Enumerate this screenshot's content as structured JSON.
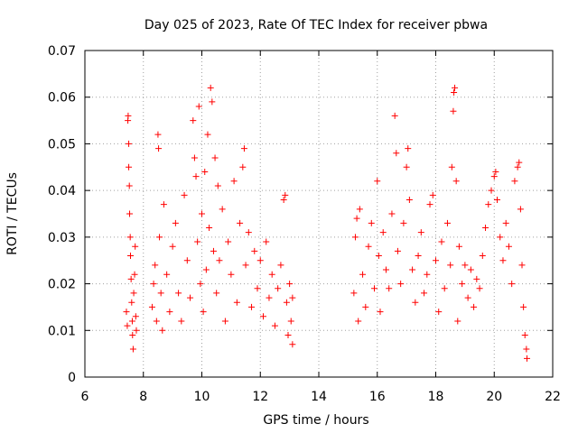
{
  "chart_data": {
    "type": "scatter",
    "title": "Day 025 of 2023, Rate Of TEC Index for receiver pbwa",
    "xlabel": "GPS time / hours",
    "ylabel": "ROTI / TECUs",
    "xlim": [
      6,
      22
    ],
    "ylim": [
      0,
      0.07
    ],
    "xticks": [
      "6",
      "8",
      "10",
      "12",
      "14",
      "16",
      "18",
      "20",
      "22"
    ],
    "yticks": [
      "0",
      "0.01",
      "0.02",
      "0.03",
      "0.04",
      "0.05",
      "0.06",
      "0.07"
    ],
    "grid": true,
    "marker": "+",
    "color": "#ff0000",
    "series": [
      {
        "points": [
          [
            7.42,
            0.014
          ],
          [
            7.45,
            0.011
          ],
          [
            7.47,
            0.055
          ],
          [
            7.48,
            0.056
          ],
          [
            7.5,
            0.05
          ],
          [
            7.5,
            0.045
          ],
          [
            7.52,
            0.041
          ],
          [
            7.53,
            0.035
          ],
          [
            7.55,
            0.03
          ],
          [
            7.56,
            0.026
          ],
          [
            7.58,
            0.021
          ],
          [
            7.6,
            0.016
          ],
          [
            7.62,
            0.012
          ],
          [
            7.63,
            0.009
          ],
          [
            7.65,
            0.006
          ],
          [
            7.67,
            0.018
          ],
          [
            7.7,
            0.022
          ],
          [
            7.72,
            0.028
          ],
          [
            7.74,
            0.013
          ],
          [
            7.76,
            0.01
          ],
          [
            8.3,
            0.015
          ],
          [
            8.35,
            0.02
          ],
          [
            8.4,
            0.024
          ],
          [
            8.45,
            0.012
          ],
          [
            8.5,
            0.052
          ],
          [
            8.52,
            0.049
          ],
          [
            8.55,
            0.03
          ],
          [
            8.6,
            0.018
          ],
          [
            8.65,
            0.01
          ],
          [
            8.7,
            0.037
          ],
          [
            8.8,
            0.022
          ],
          [
            8.9,
            0.014
          ],
          [
            9.0,
            0.028
          ],
          [
            9.1,
            0.033
          ],
          [
            9.2,
            0.018
          ],
          [
            9.3,
            0.012
          ],
          [
            9.4,
            0.039
          ],
          [
            9.5,
            0.025
          ],
          [
            9.6,
            0.017
          ],
          [
            9.7,
            0.055
          ],
          [
            9.75,
            0.047
          ],
          [
            9.8,
            0.043
          ],
          [
            9.85,
            0.029
          ],
          [
            9.9,
            0.058
          ],
          [
            9.95,
            0.02
          ],
          [
            10.0,
            0.035
          ],
          [
            10.05,
            0.014
          ],
          [
            10.1,
            0.044
          ],
          [
            10.15,
            0.023
          ],
          [
            10.2,
            0.052
          ],
          [
            10.25,
            0.032
          ],
          [
            10.3,
            0.062
          ],
          [
            10.35,
            0.059
          ],
          [
            10.4,
            0.027
          ],
          [
            10.45,
            0.047
          ],
          [
            10.5,
            0.018
          ],
          [
            10.55,
            0.041
          ],
          [
            10.6,
            0.025
          ],
          [
            10.7,
            0.036
          ],
          [
            10.8,
            0.012
          ],
          [
            10.9,
            0.029
          ],
          [
            11.0,
            0.022
          ],
          [
            11.1,
            0.042
          ],
          [
            11.2,
            0.016
          ],
          [
            11.3,
            0.033
          ],
          [
            11.4,
            0.045
          ],
          [
            11.45,
            0.049
          ],
          [
            11.5,
            0.024
          ],
          [
            11.6,
            0.031
          ],
          [
            11.7,
            0.015
          ],
          [
            11.8,
            0.027
          ],
          [
            11.9,
            0.019
          ],
          [
            12.0,
            0.025
          ],
          [
            12.1,
            0.013
          ],
          [
            12.2,
            0.029
          ],
          [
            12.3,
            0.017
          ],
          [
            12.4,
            0.022
          ],
          [
            12.5,
            0.011
          ],
          [
            12.6,
            0.019
          ],
          [
            12.7,
            0.024
          ],
          [
            12.8,
            0.038
          ],
          [
            12.85,
            0.039
          ],
          [
            12.9,
            0.016
          ],
          [
            12.95,
            0.009
          ],
          [
            13.0,
            0.02
          ],
          [
            13.05,
            0.012
          ],
          [
            13.1,
            0.007
          ],
          [
            13.1,
            0.017
          ],
          [
            15.2,
            0.018
          ],
          [
            15.25,
            0.03
          ],
          [
            15.3,
            0.034
          ],
          [
            15.35,
            0.012
          ],
          [
            15.4,
            0.036
          ],
          [
            15.5,
            0.022
          ],
          [
            15.6,
            0.015
          ],
          [
            15.7,
            0.028
          ],
          [
            15.8,
            0.033
          ],
          [
            15.9,
            0.019
          ],
          [
            16.0,
            0.042
          ],
          [
            16.05,
            0.026
          ],
          [
            16.1,
            0.014
          ],
          [
            16.2,
            0.031
          ],
          [
            16.3,
            0.023
          ],
          [
            16.4,
            0.019
          ],
          [
            16.5,
            0.035
          ],
          [
            16.6,
            0.056
          ],
          [
            16.65,
            0.048
          ],
          [
            16.7,
            0.027
          ],
          [
            16.8,
            0.02
          ],
          [
            16.9,
            0.033
          ],
          [
            17.0,
            0.045
          ],
          [
            17.05,
            0.049
          ],
          [
            17.1,
            0.038
          ],
          [
            17.2,
            0.023
          ],
          [
            17.3,
            0.016
          ],
          [
            17.4,
            0.026
          ],
          [
            17.5,
            0.031
          ],
          [
            17.6,
            0.018
          ],
          [
            17.7,
            0.022
          ],
          [
            17.8,
            0.037
          ],
          [
            17.9,
            0.039
          ],
          [
            18.0,
            0.025
          ],
          [
            18.1,
            0.014
          ],
          [
            18.2,
            0.029
          ],
          [
            18.3,
            0.019
          ],
          [
            18.4,
            0.033
          ],
          [
            18.5,
            0.024
          ],
          [
            18.55,
            0.045
          ],
          [
            18.6,
            0.057
          ],
          [
            18.62,
            0.061
          ],
          [
            18.65,
            0.062
          ],
          [
            18.7,
            0.042
          ],
          [
            18.75,
            0.012
          ],
          [
            18.8,
            0.028
          ],
          [
            18.9,
            0.02
          ],
          [
            19.0,
            0.024
          ],
          [
            19.1,
            0.017
          ],
          [
            19.2,
            0.023
          ],
          [
            19.3,
            0.015
          ],
          [
            19.4,
            0.021
          ],
          [
            19.5,
            0.019
          ],
          [
            19.6,
            0.026
          ],
          [
            19.7,
            0.032
          ],
          [
            19.8,
            0.037
          ],
          [
            19.9,
            0.04
          ],
          [
            20.0,
            0.043
          ],
          [
            20.05,
            0.044
          ],
          [
            20.1,
            0.038
          ],
          [
            20.2,
            0.03
          ],
          [
            20.3,
            0.025
          ],
          [
            20.4,
            0.033
          ],
          [
            20.5,
            0.028
          ],
          [
            20.6,
            0.02
          ],
          [
            20.7,
            0.042
          ],
          [
            20.8,
            0.045
          ],
          [
            20.85,
            0.046
          ],
          [
            20.9,
            0.036
          ],
          [
            20.95,
            0.024
          ],
          [
            21.0,
            0.015
          ],
          [
            21.05,
            0.009
          ],
          [
            21.1,
            0.006
          ],
          [
            21.12,
            0.004
          ]
        ]
      }
    ]
  }
}
